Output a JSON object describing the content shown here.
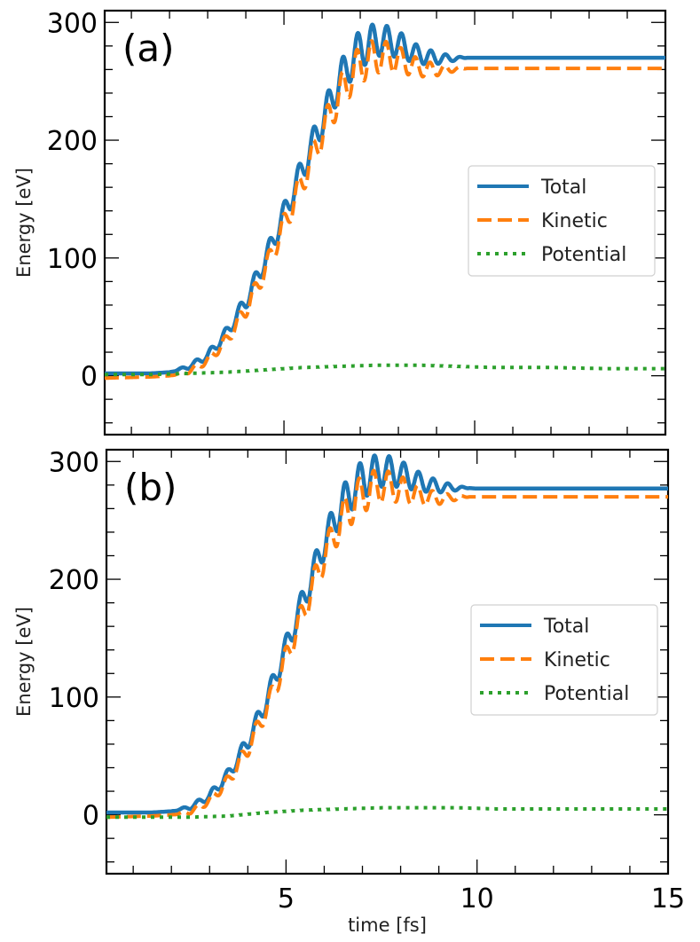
{
  "chart_data": [
    {
      "type": "line",
      "panel_label": "(a)",
      "xlabel": "",
      "ylabel": "Energy [eV]",
      "xlim": [
        0.3,
        15.0
      ],
      "ylim": [
        -50,
        310
      ],
      "yticks": [
        0,
        100,
        200,
        300
      ],
      "xticks": [
        5,
        10,
        15
      ],
      "xtick_labels_hidden": true,
      "legend_position": "center-right",
      "series": [
        {
          "name": "Total",
          "style": "solid",
          "color": "#1f77b4",
          "x": [
            0.3,
            1.5,
            2.0,
            2.5,
            3.0,
            3.5,
            4.0,
            4.5,
            5.0,
            5.5,
            6.0,
            6.5,
            7.0,
            7.5,
            8.0,
            8.5,
            9.0,
            9.5,
            10.0,
            12.0,
            15.0
          ],
          "values": [
            2,
            2,
            3,
            8,
            18,
            38,
            65,
            100,
            140,
            180,
            220,
            258,
            283,
            290,
            285,
            275,
            271,
            270,
            270,
            270,
            270
          ]
        },
        {
          "name": "Kinetic",
          "style": "dashed",
          "color": "#ff7f0e",
          "x": [
            0.3,
            1.5,
            2.0,
            2.5,
            3.0,
            3.5,
            4.0,
            4.5,
            5.0,
            5.5,
            6.0,
            6.5,
            7.0,
            7.5,
            8.0,
            8.5,
            9.0,
            9.5,
            10.0,
            12.0,
            15.0
          ],
          "values": [
            -2,
            -1,
            0,
            4,
            14,
            32,
            58,
            92,
            131,
            170,
            210,
            246,
            270,
            276,
            272,
            264,
            261,
            261,
            261,
            261,
            261
          ]
        },
        {
          "name": "Potential",
          "style": "dotted",
          "color": "#2ca02c",
          "x": [
            0.3,
            1.5,
            2.5,
            3.5,
            4.5,
            5.5,
            6.5,
            7.5,
            8.5,
            9.5,
            10.5,
            12.0,
            13.5,
            15.0
          ],
          "values": [
            1,
            1,
            2,
            3,
            5,
            7,
            8,
            9,
            9,
            8,
            7,
            7,
            6,
            6
          ]
        }
      ]
    },
    {
      "type": "line",
      "panel_label": "(b)",
      "xlabel": "time [fs]",
      "ylabel": "Energy [eV]",
      "xlim": [
        0.3,
        15.0
      ],
      "ylim": [
        -50,
        310
      ],
      "yticks": [
        0,
        100,
        200,
        300
      ],
      "xticks": [
        5,
        10,
        15
      ],
      "xtick_labels_hidden": false,
      "legend_position": "center-right",
      "series": [
        {
          "name": "Total",
          "style": "solid",
          "color": "#1f77b4",
          "x": [
            0.3,
            1.5,
            2.0,
            2.5,
            3.0,
            3.5,
            4.0,
            4.5,
            5.0,
            5.5,
            6.0,
            6.5,
            7.0,
            7.5,
            8.0,
            8.5,
            9.0,
            9.5,
            10.0,
            12.0,
            15.0
          ],
          "values": [
            2,
            2,
            3,
            7,
            17,
            36,
            64,
            100,
            145,
            190,
            235,
            270,
            290,
            297,
            293,
            285,
            280,
            278,
            277,
            277,
            277
          ]
        },
        {
          "name": "Kinetic",
          "style": "dashed",
          "color": "#ff7f0e",
          "x": [
            0.3,
            1.5,
            2.0,
            2.5,
            3.0,
            3.5,
            4.0,
            4.5,
            5.0,
            5.5,
            6.0,
            6.5,
            7.0,
            7.5,
            8.0,
            8.5,
            9.0,
            9.5,
            10.0,
            12.0,
            15.0
          ],
          "values": [
            -2,
            -1,
            0,
            3,
            13,
            31,
            58,
            93,
            136,
            180,
            224,
            258,
            278,
            284,
            280,
            273,
            270,
            270,
            270,
            270,
            270
          ]
        },
        {
          "name": "Potential",
          "style": "dotted",
          "color": "#2ca02c",
          "x": [
            0.3,
            1.5,
            2.5,
            3.5,
            4.5,
            5.5,
            6.5,
            7.5,
            8.5,
            9.5,
            10.5,
            12.0,
            13.5,
            15.0
          ],
          "values": [
            -2,
            -2,
            -2,
            -1,
            2,
            4,
            5,
            6,
            6,
            6,
            5,
            5,
            5,
            5
          ]
        }
      ]
    }
  ]
}
